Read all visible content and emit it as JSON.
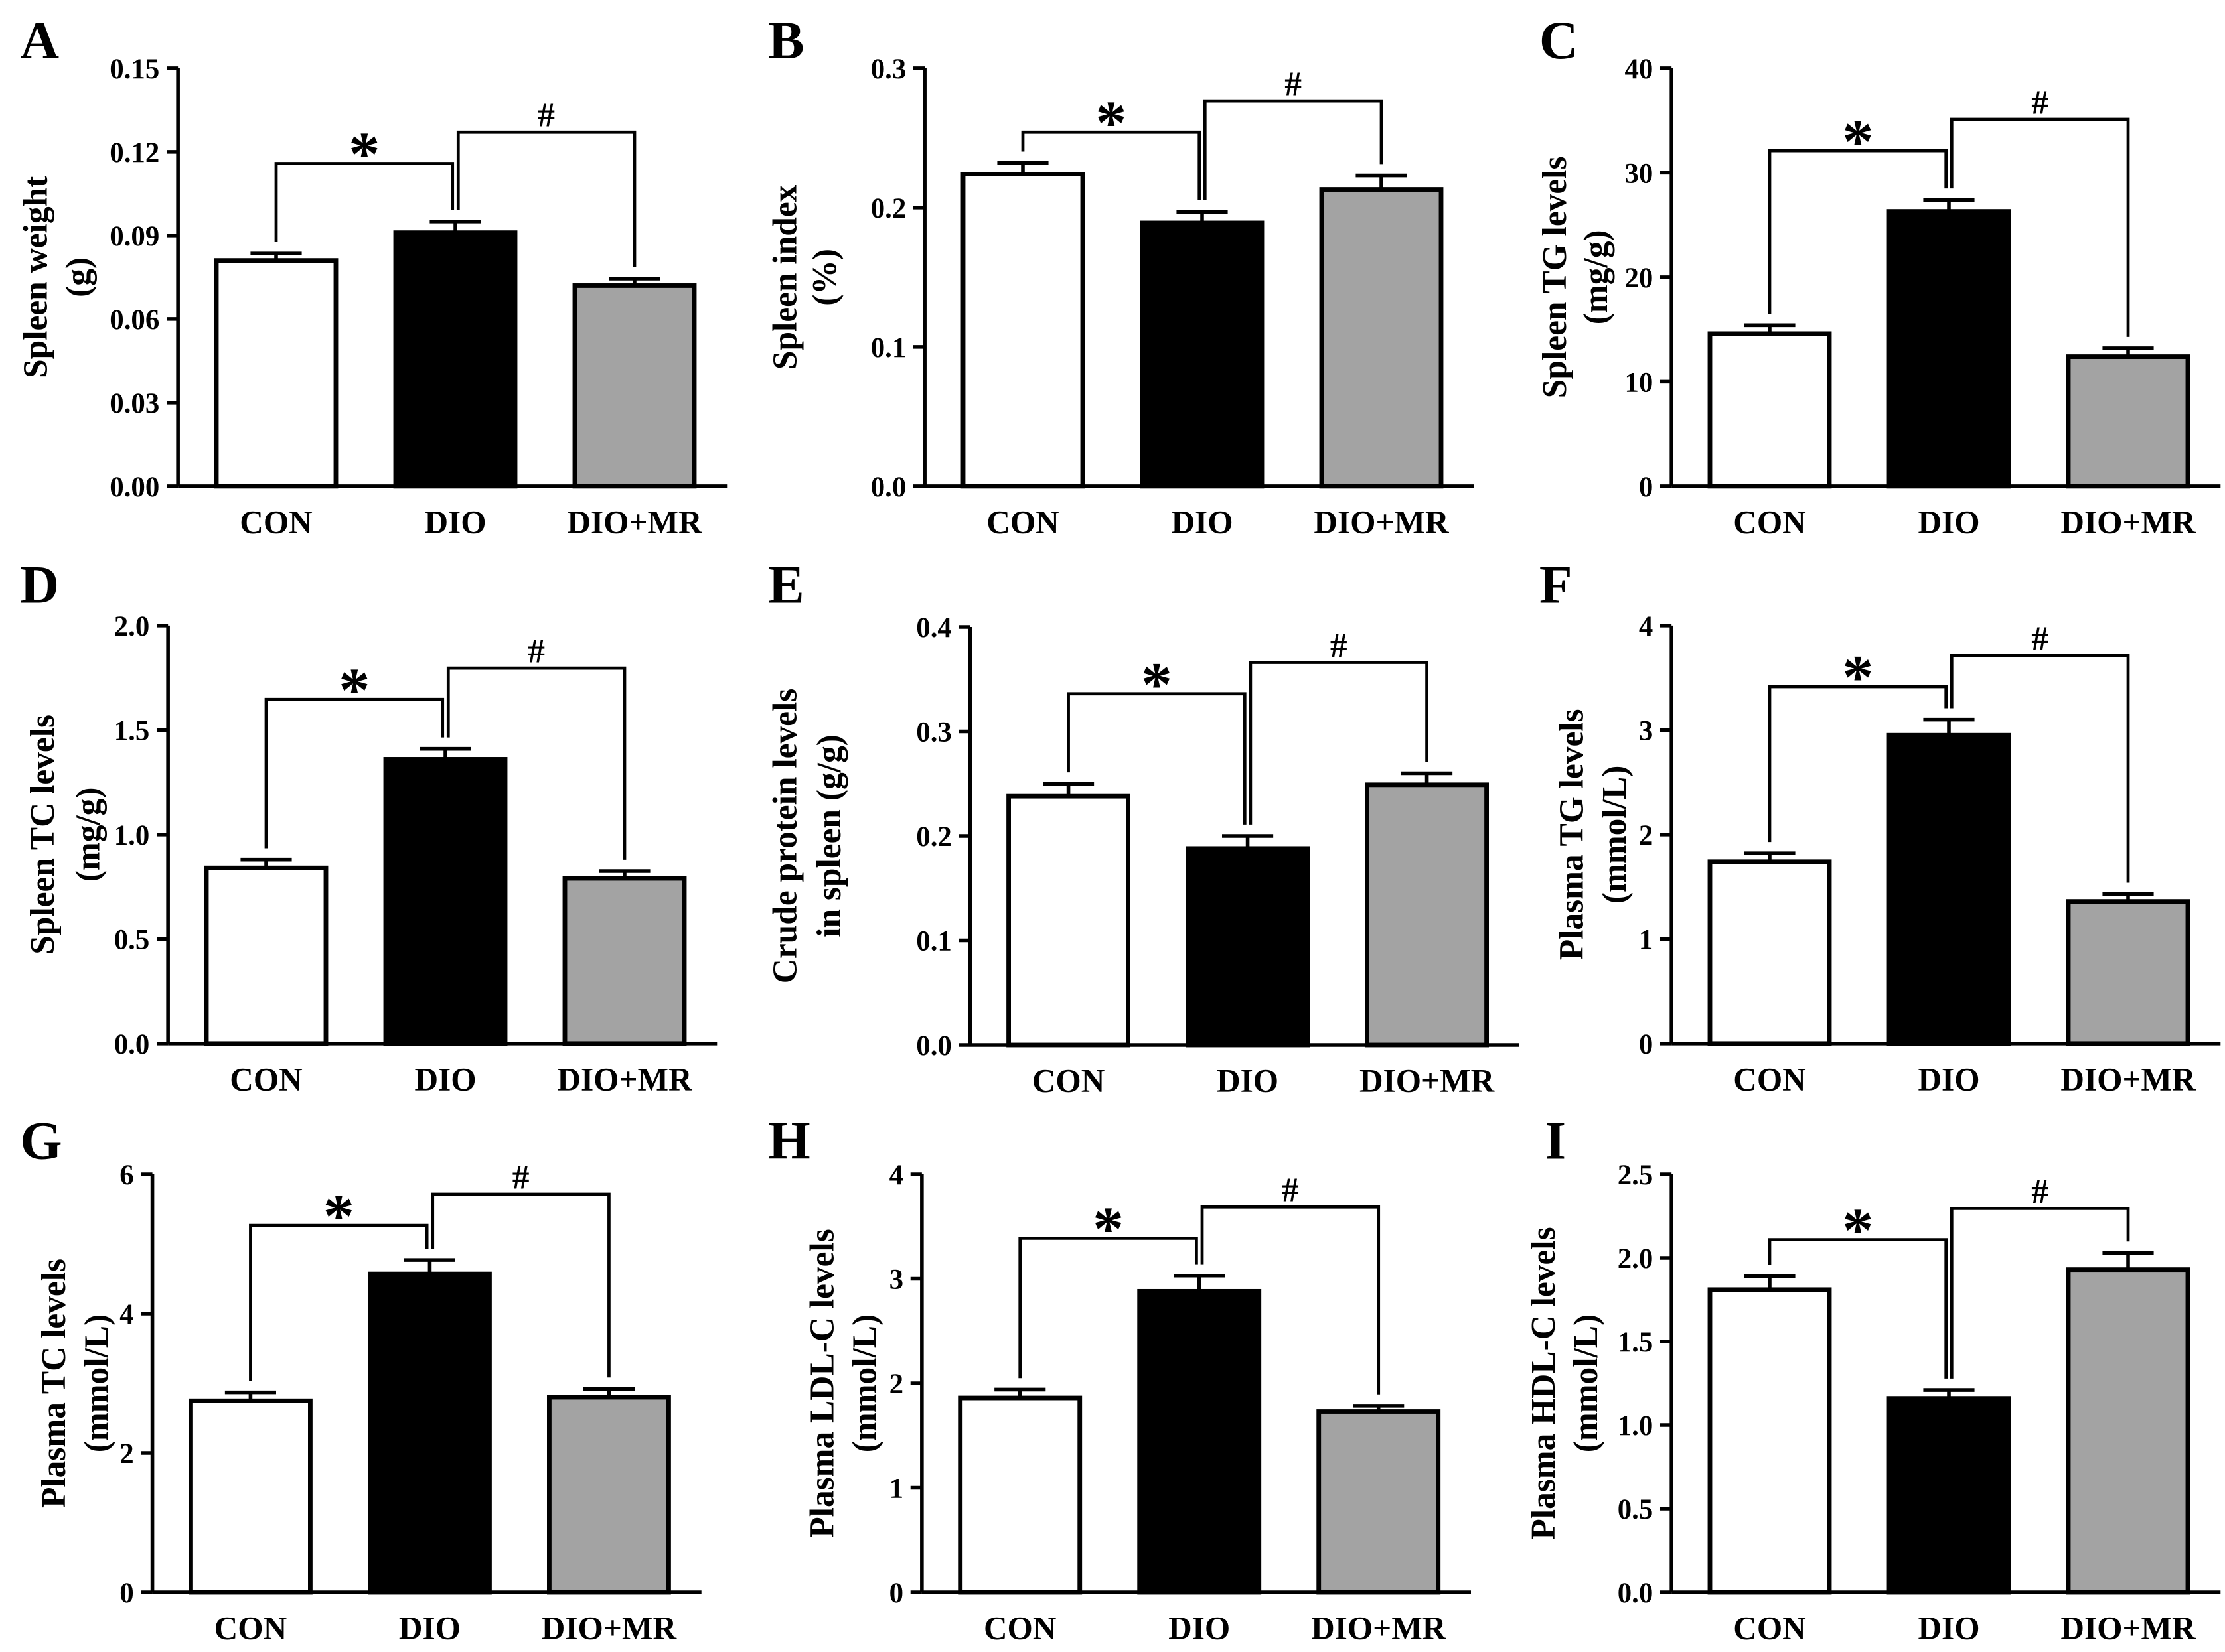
{
  "style": {
    "bar_colors": [
      "#ffffff",
      "#000000",
      "#a3a3a3"
    ],
    "outline_color": "#000000"
  },
  "chart_data": [
    {
      "panel": "A",
      "type": "bar",
      "categories": [
        "CON",
        "DIO",
        "DIO+MR"
      ],
      "values": [
        0.081,
        0.091,
        0.072
      ],
      "errors": [
        0.0025,
        0.004,
        0.0025
      ],
      "ylabel": [
        "Spleen weight",
        "(g)"
      ],
      "ylim": [
        0,
        0.15
      ],
      "yticks": [
        "0.00",
        "0.03",
        "0.06",
        "0.09",
        "0.12",
        "0.15"
      ],
      "comparisons": [
        {
          "between": [
            0,
            1
          ],
          "label": "*"
        },
        {
          "between": [
            1,
            2
          ],
          "label": "#"
        }
      ]
    },
    {
      "panel": "B",
      "type": "bar",
      "categories": [
        "CON",
        "DIO",
        "DIO+MR"
      ],
      "values": [
        0.224,
        0.189,
        0.213
      ],
      "errors": [
        0.008,
        0.008,
        0.01
      ],
      "ylabel": [
        "Spleen index",
        "(%)"
      ],
      "ylim": [
        0,
        0.3
      ],
      "yticks": [
        "0.0",
        "0.1",
        "0.2",
        "0.3"
      ],
      "comparisons": [
        {
          "between": [
            0,
            1
          ],
          "label": "*"
        },
        {
          "between": [
            1,
            2
          ],
          "label": "#"
        }
      ]
    },
    {
      "panel": "C",
      "type": "bar",
      "categories": [
        "CON",
        "DIO",
        "DIO+MR"
      ],
      "values": [
        14.6,
        26.3,
        12.4
      ],
      "errors": [
        0.8,
        1.1,
        0.8
      ],
      "ylabel": [
        "Spleen TG levels",
        "(mg/g)"
      ],
      "ylim": [
        0,
        40
      ],
      "yticks": [
        "0",
        "10",
        "20",
        "30",
        "40"
      ],
      "comparisons": [
        {
          "between": [
            0,
            1
          ],
          "label": "*"
        },
        {
          "between": [
            1,
            2
          ],
          "label": "#"
        }
      ]
    },
    {
      "panel": "D",
      "type": "bar",
      "categories": [
        "CON",
        "DIO",
        "DIO+MR"
      ],
      "values": [
        0.84,
        1.36,
        0.79
      ],
      "errors": [
        0.04,
        0.05,
        0.035
      ],
      "ylabel": [
        "Spleen TC levels",
        "(mg/g)"
      ],
      "ylim": [
        0,
        2.0
      ],
      "yticks": [
        "0.0",
        "0.5",
        "1.0",
        "1.5",
        "2.0"
      ],
      "comparisons": [
        {
          "between": [
            0,
            1
          ],
          "label": "*"
        },
        {
          "between": [
            1,
            2
          ],
          "label": "#"
        }
      ]
    },
    {
      "panel": "E",
      "type": "bar",
      "categories": [
        "CON",
        "DIO",
        "DIO+MR"
      ],
      "values": [
        0.238,
        0.188,
        0.249
      ],
      "errors": [
        0.012,
        0.012,
        0.011
      ],
      "ylabel": [
        "Crude protein levels",
        "in spleen (g/g)"
      ],
      "ylim": [
        0,
        0.4
      ],
      "yticks": [
        "0.0",
        "0.1",
        "0.2",
        "0.3",
        "0.4"
      ],
      "comparisons": [
        {
          "between": [
            0,
            1
          ],
          "label": "*"
        },
        {
          "between": [
            1,
            2
          ],
          "label": "#"
        }
      ]
    },
    {
      "panel": "F",
      "type": "bar",
      "categories": [
        "CON",
        "DIO",
        "DIO+MR"
      ],
      "values": [
        1.74,
        2.95,
        1.36
      ],
      "errors": [
        0.08,
        0.15,
        0.07
      ],
      "ylabel": [
        "Plasma TG levels",
        "(mmol/L)"
      ],
      "ylim": [
        0,
        4
      ],
      "yticks": [
        "0",
        "1",
        "2",
        "3",
        "4"
      ],
      "comparisons": [
        {
          "between": [
            0,
            1
          ],
          "label": "*"
        },
        {
          "between": [
            1,
            2
          ],
          "label": "#"
        }
      ]
    },
    {
      "panel": "G",
      "type": "bar",
      "categories": [
        "CON",
        "DIO",
        "DIO+MR"
      ],
      "values": [
        2.75,
        4.57,
        2.8
      ],
      "errors": [
        0.12,
        0.2,
        0.12
      ],
      "ylabel": [
        "Plasma TC levels",
        "(mmol/L)"
      ],
      "ylim": [
        0,
        6
      ],
      "yticks": [
        "0",
        "2",
        "4",
        "6"
      ],
      "comparisons": [
        {
          "between": [
            0,
            1
          ],
          "label": "*"
        },
        {
          "between": [
            1,
            2
          ],
          "label": "#"
        }
      ]
    },
    {
      "panel": "H",
      "type": "bar",
      "categories": [
        "CON",
        "DIO",
        "DIO+MR"
      ],
      "values": [
        1.86,
        2.88,
        1.73
      ],
      "errors": [
        0.08,
        0.15,
        0.055
      ],
      "ylabel": [
        "Plasma LDL-C levels",
        "(mmol/L)"
      ],
      "ylim": [
        0,
        4
      ],
      "yticks": [
        "0",
        "1",
        "2",
        "3",
        "4"
      ],
      "comparisons": [
        {
          "between": [
            0,
            1
          ],
          "label": "*"
        },
        {
          "between": [
            1,
            2
          ],
          "label": "#"
        }
      ]
    },
    {
      "panel": "I",
      "type": "bar",
      "categories": [
        "CON",
        "DIO",
        "DIO+MR"
      ],
      "values": [
        1.81,
        1.16,
        1.93
      ],
      "errors": [
        0.08,
        0.05,
        0.1
      ],
      "ylabel": [
        "Plasma HDL-C levels",
        "(mmol/L)"
      ],
      "ylim": [
        0,
        2.5
      ],
      "yticks": [
        "0.0",
        "0.5",
        "1.0",
        "1.5",
        "2.0",
        "2.5"
      ],
      "comparisons": [
        {
          "between": [
            0,
            1
          ],
          "label": "*"
        },
        {
          "between": [
            1,
            2
          ],
          "label": "#"
        }
      ]
    }
  ]
}
